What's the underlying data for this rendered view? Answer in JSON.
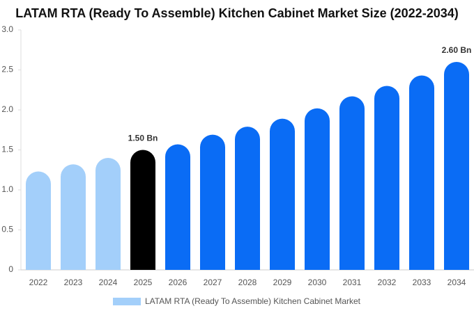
{
  "chart_data": {
    "type": "bar",
    "title": "LATAM RTA (Ready To Assemble) Kitchen Cabinet Market Size (2022-2034)",
    "categories": [
      "2022",
      "2023",
      "2024",
      "2025",
      "2026",
      "2027",
      "2028",
      "2029",
      "2030",
      "2031",
      "2032",
      "2033",
      "2034"
    ],
    "series": [
      {
        "name": "LATAM RTA (Ready To Assemble) Kitchen Cabinet Market",
        "color": "#a3cffa",
        "values": [
          1.23,
          1.32,
          1.4,
          1.5,
          1.57,
          1.69,
          1.79,
          1.89,
          2.02,
          2.17,
          2.3,
          2.43,
          2.6
        ],
        "value_labels": [
          null,
          null,
          null,
          "1.50 Bn",
          null,
          null,
          null,
          null,
          null,
          null,
          null,
          null,
          "2.60 Bn"
        ],
        "colors": [
          "#a3cffa",
          "#a3cffa",
          "#a3cffa",
          "#000000",
          "#0a6cf5",
          "#0a6cf5",
          "#0a6cf5",
          "#0a6cf5",
          "#0a6cf5",
          "#0a6cf5",
          "#0a6cf5",
          "#0a6cf5",
          "#0a6cf5"
        ]
      }
    ],
    "ylim": [
      0,
      3
    ],
    "yticks": [
      0,
      {
        "value": 0.5,
        "label": "0.5"
      },
      {
        "value": 1,
        "label": "1.0"
      },
      {
        "value": 1.5,
        "label": "1.5"
      },
      {
        "value": 2,
        "label": "2.0"
      },
      {
        "value": 2.5,
        "label": "2.5"
      },
      {
        "value": 3,
        "label": "3.0"
      }
    ],
    "grid": false
  }
}
